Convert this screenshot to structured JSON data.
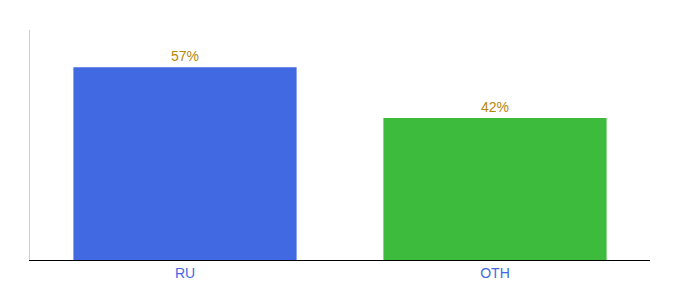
{
  "chart_data": {
    "type": "bar",
    "categories": [
      "RU",
      "OTH"
    ],
    "values": [
      57,
      42
    ],
    "value_labels": [
      "57%",
      "42%"
    ],
    "colors": [
      "#4169e1",
      "#3dbb3d"
    ],
    "ylim": [
      0,
      68
    ],
    "yticks": [],
    "grid": false,
    "data_labels": true,
    "tick_labels": "x"
  }
}
